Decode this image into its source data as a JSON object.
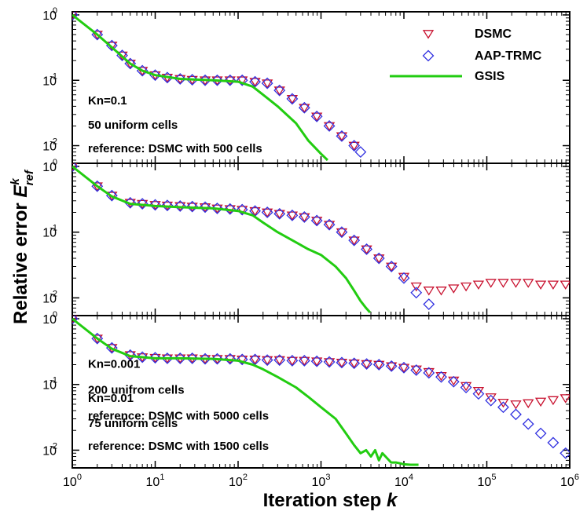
{
  "chart_data": {
    "type": "scatter",
    "x_label_text": "Iteration step ",
    "x_label_var": "k",
    "y_label_text": "Relative error ",
    "y_label_var": "E",
    "y_label_sup": "k",
    "y_label_sub": "ref",
    "x_scale": "log",
    "y_scale": "log",
    "xlim": [
      1,
      1000000
    ],
    "ylim": [
      0.006,
      1
    ],
    "x_tick_mantissas": [
      "10",
      "10",
      "10",
      "10",
      "10",
      "10",
      "10"
    ],
    "x_tick_exponents": [
      "0",
      "1",
      "2",
      "3",
      "4",
      "5",
      "6"
    ],
    "y_tick_mantissas": [
      "10",
      "10",
      "10"
    ],
    "y_tick_exponents": [
      "0",
      "-1",
      "-2"
    ],
    "legend": {
      "placement": "top-right",
      "entries": [
        {
          "label": "DSMC",
          "marker": "triangle-down",
          "color": "#c8102e"
        },
        {
          "label": "AAP-TRMC",
          "marker": "diamond",
          "color": "#3030e0"
        },
        {
          "label": "GSIS",
          "marker": "line",
          "color": "#22cc11"
        }
      ]
    },
    "panels": [
      {
        "annotations": [
          "Kn=0.1",
          "50 uniform cells",
          "reference: DSMC with 500 cells"
        ],
        "series": [
          {
            "name": "DSMC",
            "x": [
              1,
              2,
              3,
              4,
              5,
              7,
              10,
              14,
              20,
              28,
              40,
              56,
              80,
              112,
              160,
              225,
              316,
              450,
              630,
              890,
              1260,
              1780,
              2510
            ],
            "y": [
              1.0,
              0.5,
              0.34,
              0.24,
              0.18,
              0.14,
              0.12,
              0.11,
              0.105,
              0.102,
              0.1,
              0.1,
              0.1,
              0.1,
              0.095,
              0.09,
              0.07,
              0.052,
              0.038,
              0.028,
              0.02,
              0.014,
              0.01
            ]
          },
          {
            "name": "AAP-TRMC",
            "x": [
              1,
              2,
              3,
              4,
              5,
              7,
              10,
              14,
              20,
              28,
              40,
              56,
              80,
              112,
              160,
              225,
              316,
              450,
              630,
              890,
              1260,
              1780,
              2510,
              3000
            ],
            "y": [
              1.0,
              0.5,
              0.34,
              0.24,
              0.18,
              0.14,
              0.12,
              0.11,
              0.105,
              0.102,
              0.1,
              0.1,
              0.1,
              0.1,
              0.095,
              0.09,
              0.07,
              0.052,
              0.038,
              0.028,
              0.02,
              0.014,
              0.01,
              0.008
            ]
          },
          {
            "name": "GSIS",
            "x": [
              1,
              2,
              3,
              5,
              7,
              10,
              20,
              50,
              100,
              150,
              200,
              300,
              500,
              700,
              1000,
              1200
            ],
            "y": [
              1.0,
              0.5,
              0.32,
              0.18,
              0.14,
              0.12,
              0.105,
              0.1,
              0.095,
              0.08,
              0.06,
              0.04,
              0.022,
              0.012,
              0.0075,
              0.006
            ]
          }
        ]
      },
      {
        "annotations": [
          "Kn=0.01",
          "75 uniform cells",
          "reference: DSMC with 1500 cells"
        ],
        "series": [
          {
            "name": "DSMC",
            "x": [
              1,
              2,
              3,
              5,
              7,
              10,
              14,
              20,
              28,
              40,
              56,
              80,
              112,
              160,
              225,
              316,
              450,
              630,
              890,
              1260,
              1780,
              2510,
              3550,
              5000,
              7080,
              10000,
              14100,
              20000,
              28200,
              39800,
              56200,
              79400,
              112000,
              158000,
              224000,
              316000,
              447000,
              631000,
              891000
            ],
            "y": [
              1.0,
              0.5,
              0.36,
              0.28,
              0.27,
              0.26,
              0.255,
              0.25,
              0.245,
              0.24,
              0.23,
              0.225,
              0.22,
              0.21,
              0.2,
              0.19,
              0.18,
              0.17,
              0.15,
              0.13,
              0.1,
              0.075,
              0.055,
              0.04,
              0.03,
              0.021,
              0.015,
              0.013,
              0.013,
              0.014,
              0.015,
              0.016,
              0.017,
              0.017,
              0.017,
              0.017,
              0.016,
              0.016,
              0.016
            ]
          },
          {
            "name": "AAP-TRMC",
            "x": [
              1,
              2,
              3,
              5,
              7,
              10,
              14,
              20,
              28,
              40,
              56,
              80,
              112,
              160,
              225,
              316,
              450,
              630,
              890,
              1260,
              1780,
              2510,
              3550,
              5000,
              7080,
              10000,
              14100,
              20000
            ],
            "y": [
              1.0,
              0.5,
              0.36,
              0.28,
              0.27,
              0.26,
              0.255,
              0.25,
              0.245,
              0.24,
              0.23,
              0.225,
              0.22,
              0.21,
              0.2,
              0.19,
              0.18,
              0.17,
              0.15,
              0.13,
              0.1,
              0.075,
              0.055,
              0.04,
              0.03,
              0.02,
              0.012,
              0.008
            ]
          },
          {
            "name": "GSIS",
            "x": [
              1,
              2,
              3,
              5,
              10,
              20,
              50,
              100,
              150,
              200,
              300,
              500,
              700,
              1000,
              1500,
              2000,
              2500,
              3000,
              3500,
              3900
            ],
            "y": [
              1.0,
              0.5,
              0.35,
              0.27,
              0.25,
              0.24,
              0.23,
              0.21,
              0.18,
              0.14,
              0.1,
              0.07,
              0.055,
              0.045,
              0.03,
              0.02,
              0.013,
              0.009,
              0.007,
              0.006
            ]
          }
        ]
      },
      {
        "annotations": [
          "Kn=0.001",
          "200 unifrom cells",
          "reference: DSMC with 5000 cells"
        ],
        "series": [
          {
            "name": "DSMC",
            "x": [
              1,
              2,
              3,
              5,
              7,
              10,
              14,
              20,
              28,
              40,
              56,
              80,
              112,
              160,
              225,
              316,
              450,
              630,
              890,
              1260,
              1780,
              2510,
              3550,
              5000,
              7080,
              10000,
              14100,
              20000,
              28200,
              39800,
              56200,
              79400,
              112000,
              158000,
              224000,
              316000,
              447000,
              631000,
              891000
            ],
            "y": [
              1.0,
              0.5,
              0.36,
              0.28,
              0.26,
              0.255,
              0.25,
              0.25,
              0.25,
              0.245,
              0.245,
              0.245,
              0.24,
              0.24,
              0.235,
              0.235,
              0.23,
              0.23,
              0.225,
              0.22,
              0.215,
              0.21,
              0.205,
              0.2,
              0.19,
              0.18,
              0.17,
              0.155,
              0.135,
              0.115,
              0.095,
              0.08,
              0.064,
              0.053,
              0.05,
              0.052,
              0.055,
              0.058,
              0.062
            ]
          },
          {
            "name": "AAP-TRMC",
            "x": [
              1,
              2,
              3,
              5,
              7,
              10,
              14,
              20,
              28,
              40,
              56,
              80,
              112,
              160,
              225,
              316,
              450,
              630,
              890,
              1260,
              1780,
              2510,
              3550,
              5000,
              7080,
              10000,
              14100,
              20000,
              28200,
              39800,
              56200,
              79400,
              112000,
              158000,
              224000,
              316000,
              447000,
              631000,
              891000
            ],
            "y": [
              1.0,
              0.5,
              0.36,
              0.28,
              0.26,
              0.255,
              0.25,
              0.25,
              0.25,
              0.245,
              0.245,
              0.245,
              0.24,
              0.24,
              0.235,
              0.235,
              0.23,
              0.23,
              0.225,
              0.22,
              0.215,
              0.21,
              0.205,
              0.2,
              0.19,
              0.18,
              0.165,
              0.15,
              0.13,
              0.11,
              0.09,
              0.072,
              0.057,
              0.045,
              0.035,
              0.025,
              0.018,
              0.013,
              0.009
            ]
          },
          {
            "name": "GSIS",
            "x": [
              1,
              2,
              3,
              5,
              10,
              20,
              50,
              100,
              150,
              200,
              300,
              500,
              700,
              1000,
              1500,
              2000,
              2500,
              3000,
              3500,
              4000,
              4500,
              5000,
              5500,
              6000,
              7000,
              8000,
              9000,
              10000,
              12000,
              15000
            ],
            "y": [
              1.0,
              0.5,
              0.35,
              0.27,
              0.25,
              0.25,
              0.245,
              0.23,
              0.2,
              0.17,
              0.13,
              0.09,
              0.065,
              0.045,
              0.03,
              0.018,
              0.012,
              0.009,
              0.01,
              0.008,
              0.01,
              0.007,
              0.009,
              0.008,
              0.0065,
              0.0065,
              0.0063,
              0.0061,
              0.006,
              0.006
            ]
          }
        ]
      }
    ]
  }
}
